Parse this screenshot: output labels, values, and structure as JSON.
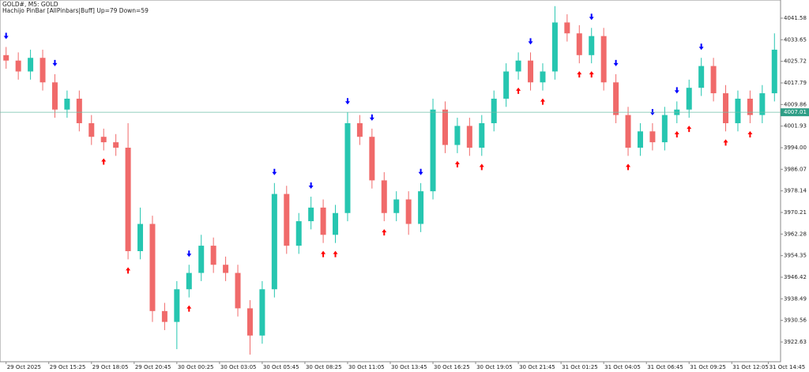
{
  "chart_data": {
    "type": "candlestick",
    "title": "GOLD#, M5:  GOLD",
    "subtitle": "Hachijo PinBar [AllPinbars|Buff]  Up=79  Down=59",
    "up_color": "#26c6b0",
    "down_color": "#f06a6a",
    "open": [
      4028,
      4026,
      4022,
      4027,
      4018,
      4008,
      4012,
      4003,
      3998,
      3996,
      3994,
      3956,
      3966,
      3934,
      3930,
      3942,
      3948,
      3958,
      3951,
      3948,
      3935,
      3925,
      3942,
      3977,
      3958,
      3967,
      3972,
      3962,
      3970,
      4003,
      3998,
      3982,
      3970,
      3975,
      3966,
      3978,
      4008,
      3995,
      4002,
      3994,
      4003,
      4012,
      4022,
      4026,
      4018,
      4022,
      4040,
      4036,
      4028,
      4035,
      4018,
      4006,
      3994,
      4000,
      3996,
      4006,
      4008,
      4016,
      4024,
      4014,
      4003,
      4012,
      4006,
      4014
    ],
    "high": [
      4031,
      4029,
      4030,
      4030,
      4021,
      4015,
      4015,
      4006,
      4001,
      3999,
      4003,
      3972,
      3969,
      3937,
      3945,
      3951,
      3962,
      3961,
      3954,
      3951,
      3938,
      3945,
      3981,
      3980,
      3970,
      3976,
      3975,
      3973,
      4007,
      4006,
      4001,
      3985,
      3978,
      3978,
      3981,
      4012,
      4011,
      4005,
      4005,
      4006,
      4015,
      4025,
      4029,
      4029,
      4025,
      4046,
      4043,
      4039,
      4038,
      4038,
      4021,
      4009,
      4003,
      4003,
      4009,
      4011,
      4019,
      4027,
      4027,
      4017,
      4015,
      4015,
      4017,
      4036
    ],
    "low": [
      4023,
      4019,
      4019,
      4015,
      4005,
      4005,
      4000,
      3995,
      3993,
      3991,
      3953,
      3953,
      3930,
      3927,
      3920,
      3939,
      3945,
      3948,
      3945,
      3932,
      3918,
      3922,
      3939,
      3955,
      3955,
      3964,
      3959,
      3959,
      3967,
      3995,
      3979,
      3967,
      3967,
      3962,
      3963,
      3975,
      3992,
      3992,
      3991,
      3991,
      4000,
      4009,
      4019,
      4015,
      4015,
      4019,
      4033,
      4025,
      4025,
      4015,
      4003,
      3991,
      3991,
      3993,
      3993,
      4003,
      4005,
      4013,
      4011,
      4000,
      4000,
      4003,
      4003,
      4011
    ],
    "close": [
      4026,
      4022,
      4027,
      4018,
      4008,
      4012,
      4003,
      3998,
      3996,
      3994,
      3956,
      3966,
      3934,
      3930,
      3942,
      3948,
      3958,
      3951,
      3948,
      3935,
      3925,
      3942,
      3977,
      3958,
      3967,
      3972,
      3962,
      3970,
      4003,
      3998,
      3982,
      3970,
      3975,
      3966,
      3978,
      4008,
      3995,
      4002,
      3994,
      4003,
      4012,
      4022,
      4026,
      4018,
      4022,
      4040,
      4036,
      4028,
      4035,
      4018,
      4006,
      3994,
      4000,
      3996,
      4006,
      4008,
      4016,
      4024,
      4014,
      4003,
      4012,
      4006,
      4014,
      4030
    ],
    "signals_up": [
      8,
      10,
      15,
      26,
      27,
      31,
      37,
      39,
      42,
      44,
      47,
      48,
      51,
      55,
      56,
      59,
      61
    ],
    "signals_down": [
      0,
      4,
      15,
      22,
      25,
      28,
      30,
      34,
      43,
      45,
      48,
      50,
      53,
      55,
      57
    ],
    "up_signal_color": "#ff0000",
    "down_signal_color": "#0000ff",
    "current_price": 4007.01,
    "current_price_label": "4007.01",
    "ylim": [
      3915.38,
      4048.25
    ],
    "yticks": [
      {
        "value": 4041.58,
        "label": "4041.58"
      },
      {
        "value": 4033.65,
        "label": "4033.65"
      },
      {
        "value": 4025.72,
        "label": "4025.72"
      },
      {
        "value": 4017.79,
        "label": "4017.79"
      },
      {
        "value": 4009.86,
        "label": "4009.86"
      },
      {
        "value": 4001.93,
        "label": "4001.93"
      },
      {
        "value": 3994.0,
        "label": "3994.00"
      },
      {
        "value": 3986.07,
        "label": "3986.07"
      },
      {
        "value": 3978.14,
        "label": "3978.14"
      },
      {
        "value": 3970.21,
        "label": "3970.21"
      },
      {
        "value": 3962.28,
        "label": "3962.28"
      },
      {
        "value": 3954.35,
        "label": "3954.35"
      },
      {
        "value": 3946.42,
        "label": "3946.42"
      },
      {
        "value": 3938.49,
        "label": "3938.49"
      },
      {
        "value": 3930.56,
        "label": "3930.56"
      },
      {
        "value": 3922.63,
        "label": "3922.63"
      }
    ],
    "xticks": [
      {
        "value": 0,
        "label": "29 Oct 2025"
      },
      {
        "value": 3.5,
        "label": "29 Oct 15:25"
      },
      {
        "value": 7,
        "label": "29 Oct 18:05"
      },
      {
        "value": 10.5,
        "label": "29 Oct 20:45"
      },
      {
        "value": 14,
        "label": "30 Oct 00:25"
      },
      {
        "value": 17.5,
        "label": "30 Oct 03:05"
      },
      {
        "value": 21,
        "label": "30 Oct 05:45"
      },
      {
        "value": 24.5,
        "label": "30 Oct 08:25"
      },
      {
        "value": 28,
        "label": "30 Oct 11:05"
      },
      {
        "value": 31.5,
        "label": "30 Oct 13:45"
      },
      {
        "value": 35,
        "label": "30 Oct 16:25"
      },
      {
        "value": 38.5,
        "label": "30 Oct 19:05"
      },
      {
        "value": 42,
        "label": "30 Oct 21:45"
      },
      {
        "value": 45.5,
        "label": "31 Oct 01:25"
      },
      {
        "value": 49,
        "label": "31 Oct 04:05"
      },
      {
        "value": 52.5,
        "label": "31 Oct 06:45"
      },
      {
        "value": 56,
        "label": "31 Oct 09:25"
      },
      {
        "value": 59.5,
        "label": "31 Oct 12:05"
      },
      {
        "value": 62.5,
        "label": "31 Oct 14:45"
      }
    ]
  }
}
